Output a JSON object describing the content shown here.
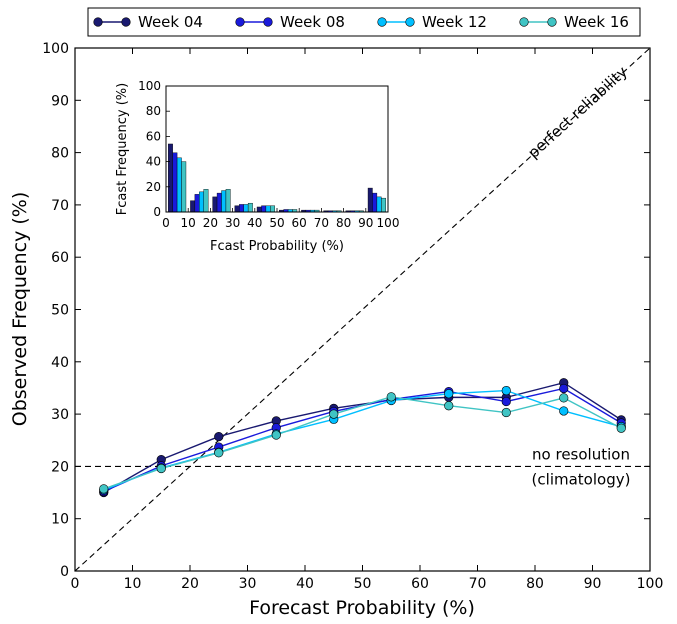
{
  "chart_data": [
    {
      "id": "main",
      "type": "line",
      "xlabel": "Forecast Probability (%)",
      "ylabel": "Observed Frequency (%)",
      "xlim": [
        0,
        100
      ],
      "ylim": [
        0,
        100
      ],
      "xticks": [
        0,
        10,
        20,
        30,
        40,
        50,
        60,
        70,
        80,
        90,
        100
      ],
      "yticks": [
        0,
        10,
        20,
        30,
        40,
        50,
        60,
        70,
        80,
        90,
        100
      ],
      "x": [
        5,
        15,
        25,
        35,
        45,
        55,
        65,
        75,
        85,
        95
      ],
      "legend_position": "top (outside plot)",
      "grid": false,
      "series": [
        {
          "name": "Week 04",
          "color": "#191970",
          "values": [
            15.0,
            21.3,
            25.7,
            28.7,
            31.1,
            32.7,
            33.2,
            33.2,
            36.0,
            28.9
          ]
        },
        {
          "name": "Week 08",
          "color": "#1a1adb",
          "values": [
            15.2,
            20.1,
            23.7,
            27.4,
            30.5,
            32.8,
            34.3,
            32.4,
            34.9,
            28.3
          ]
        },
        {
          "name": "Week 12",
          "color": "#00bfff",
          "values": [
            15.5,
            19.7,
            22.7,
            26.2,
            29.0,
            32.6,
            33.9,
            34.5,
            30.6,
            27.6
          ]
        },
        {
          "name": "Week 16",
          "color": "#40c4c4",
          "values": [
            15.7,
            19.6,
            22.6,
            26.0,
            30.0,
            33.3,
            31.6,
            30.3,
            33.1,
            27.3
          ]
        }
      ],
      "reference_lines": [
        {
          "label": "perfect reliability",
          "from": [
            0,
            0
          ],
          "to": [
            100,
            100
          ]
        },
        {
          "label_lines": [
            "no resolution",
            "(climatology)"
          ],
          "y": 20
        }
      ]
    },
    {
      "id": "inset",
      "type": "bar",
      "xlabel": "Fcast Probability (%)",
      "ylabel": "Fcast Frequency (%)",
      "xlim": [
        0,
        100
      ],
      "ylim": [
        0,
        100
      ],
      "xticks": [
        0,
        10,
        20,
        30,
        40,
        50,
        60,
        70,
        80,
        90,
        100
      ],
      "yticks": [
        0,
        20,
        40,
        60,
        80,
        100
      ],
      "bin_centers": [
        5,
        15,
        25,
        35,
        45,
        55,
        65,
        75,
        85,
        95
      ],
      "series": [
        {
          "name": "Week 04",
          "values": [
            54,
            9,
            12,
            5,
            4,
            1.5,
            1.5,
            1,
            1,
            19
          ]
        },
        {
          "name": "Week 08",
          "values": [
            47,
            14,
            15,
            6,
            5,
            2,
            1.5,
            1,
            1,
            15
          ]
        },
        {
          "name": "Week 12",
          "values": [
            43,
            16,
            17,
            6,
            5,
            2,
            1.5,
            1,
            1,
            12
          ]
        },
        {
          "name": "Week 16",
          "values": [
            40,
            18,
            18,
            7,
            5,
            2,
            1.5,
            1,
            1,
            11
          ]
        }
      ]
    }
  ]
}
